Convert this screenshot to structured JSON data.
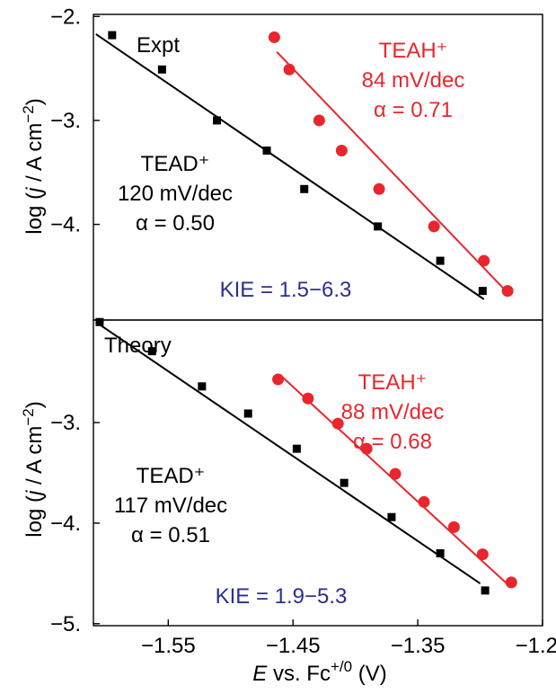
{
  "chart_data": [
    {
      "type": "scatter",
      "panel": "top",
      "panel_label": "Expt",
      "x_ticks": [],
      "y_ticks": [
        "−2.",
        "−3.",
        "−4."
      ],
      "y_tick_values": [
        -2,
        -3,
        -4
      ],
      "ylim": [
        -4.92,
        -1.98
      ],
      "xlim": [
        -1.61,
        -1.25
      ],
      "ylabel": "log (j / A cm⁻²)",
      "series": [
        {
          "name": "TEAD⁺",
          "color": "#000000",
          "marker": "square",
          "points": [
            [
              -1.595,
              -2.18
            ],
            [
              -1.555,
              -2.51
            ],
            [
              -1.511,
              -3.0
            ],
            [
              -1.471,
              -3.29
            ],
            [
              -1.441,
              -3.66
            ],
            [
              -1.382,
              -4.02
            ],
            [
              -1.332,
              -4.35
            ],
            [
              -1.298,
              -4.64
            ]
          ],
          "fit": [
            [
              -1.608,
              -2.17
            ],
            [
              -1.297,
              -4.72
            ]
          ],
          "label_lines": [
            "TEAD⁺",
            "120 mV/dec",
            "α = 0.50"
          ],
          "slope": "120 mV/dec",
          "alpha": "α = 0.50"
        },
        {
          "name": "TEAH⁺",
          "color": "#e8262d",
          "marker": "circle",
          "points": [
            [
              -1.465,
              -2.2
            ],
            [
              -1.453,
              -2.51
            ],
            [
              -1.429,
              -3.0
            ],
            [
              -1.411,
              -3.29
            ],
            [
              -1.381,
              -3.66
            ],
            [
              -1.337,
              -4.02
            ],
            [
              -1.297,
              -4.35
            ],
            [
              -1.278,
              -4.64
            ]
          ],
          "fit": [
            [
              -1.463,
              -2.34
            ],
            [
              -1.281,
              -4.62
            ]
          ],
          "label_lines": [
            "TEAH⁺",
            "84 mV/dec",
            "α = 0.71"
          ],
          "slope": "84 mV/dec",
          "alpha": "α = 0.71"
        }
      ],
      "annotation": "KIE = 1.5−6.3",
      "annotation_color": "#2b2f8f"
    },
    {
      "type": "scatter",
      "panel": "bottom",
      "panel_label": "Theory",
      "x_ticks": [
        "−1.55",
        "−1.45",
        "−1.35",
        "−1.25"
      ],
      "x_tick_values": [
        -1.55,
        -1.45,
        -1.35,
        -1.25
      ],
      "y_ticks": [
        "−3.",
        "−4.",
        "−5."
      ],
      "y_tick_values": [
        -3,
        -4,
        -5
      ],
      "ylim": [
        -5.02,
        -1.98
      ],
      "xlim": [
        -1.61,
        -1.25
      ],
      "xlabel": "E vs. Fc⁺⁰ (V)",
      "ylabel": "log (j / A cm⁻²)",
      "series": [
        {
          "name": "TEAD⁺",
          "color": "#000000",
          "marker": "square",
          "points": [
            [
              -1.605,
              -2.0
            ],
            [
              -1.563,
              -2.29
            ],
            [
              -1.523,
              -2.64
            ],
            [
              -1.486,
              -2.91
            ],
            [
              -1.447,
              -3.26
            ],
            [
              -1.409,
              -3.6
            ],
            [
              -1.371,
              -3.94
            ],
            [
              -1.332,
              -4.3
            ],
            [
              -1.296,
              -4.67
            ]
          ],
          "fit": [
            [
              -1.608,
              -2.0
            ],
            [
              -1.3,
              -4.6
            ]
          ],
          "label_lines": [
            "TEAD⁺",
            "117 mV/dec",
            "α = 0.51"
          ],
          "slope": "117 mV/dec",
          "alpha": "α = 0.51"
        },
        {
          "name": "TEAH⁺",
          "color": "#e8262d",
          "marker": "circle",
          "points": [
            [
              -1.462,
              -2.57
            ],
            [
              -1.438,
              -2.76
            ],
            [
              -1.414,
              -3.01
            ],
            [
              -1.391,
              -3.26
            ],
            [
              -1.368,
              -3.51
            ],
            [
              -1.345,
              -3.79
            ],
            [
              -1.321,
              -4.04
            ],
            [
              -1.298,
              -4.31
            ],
            [
              -1.275,
              -4.59
            ]
          ],
          "fit": [
            [
              -1.46,
              -2.53
            ],
            [
              -1.277,
              -4.62
            ]
          ],
          "label_lines": [
            "TEAH⁺",
            "88 mV/dec",
            "α = 0.68"
          ],
          "slope": "88 mV/dec",
          "alpha": "α = 0.68"
        }
      ],
      "annotation": "KIE = 1.9−5.3",
      "annotation_color": "#2b2f8f"
    }
  ]
}
